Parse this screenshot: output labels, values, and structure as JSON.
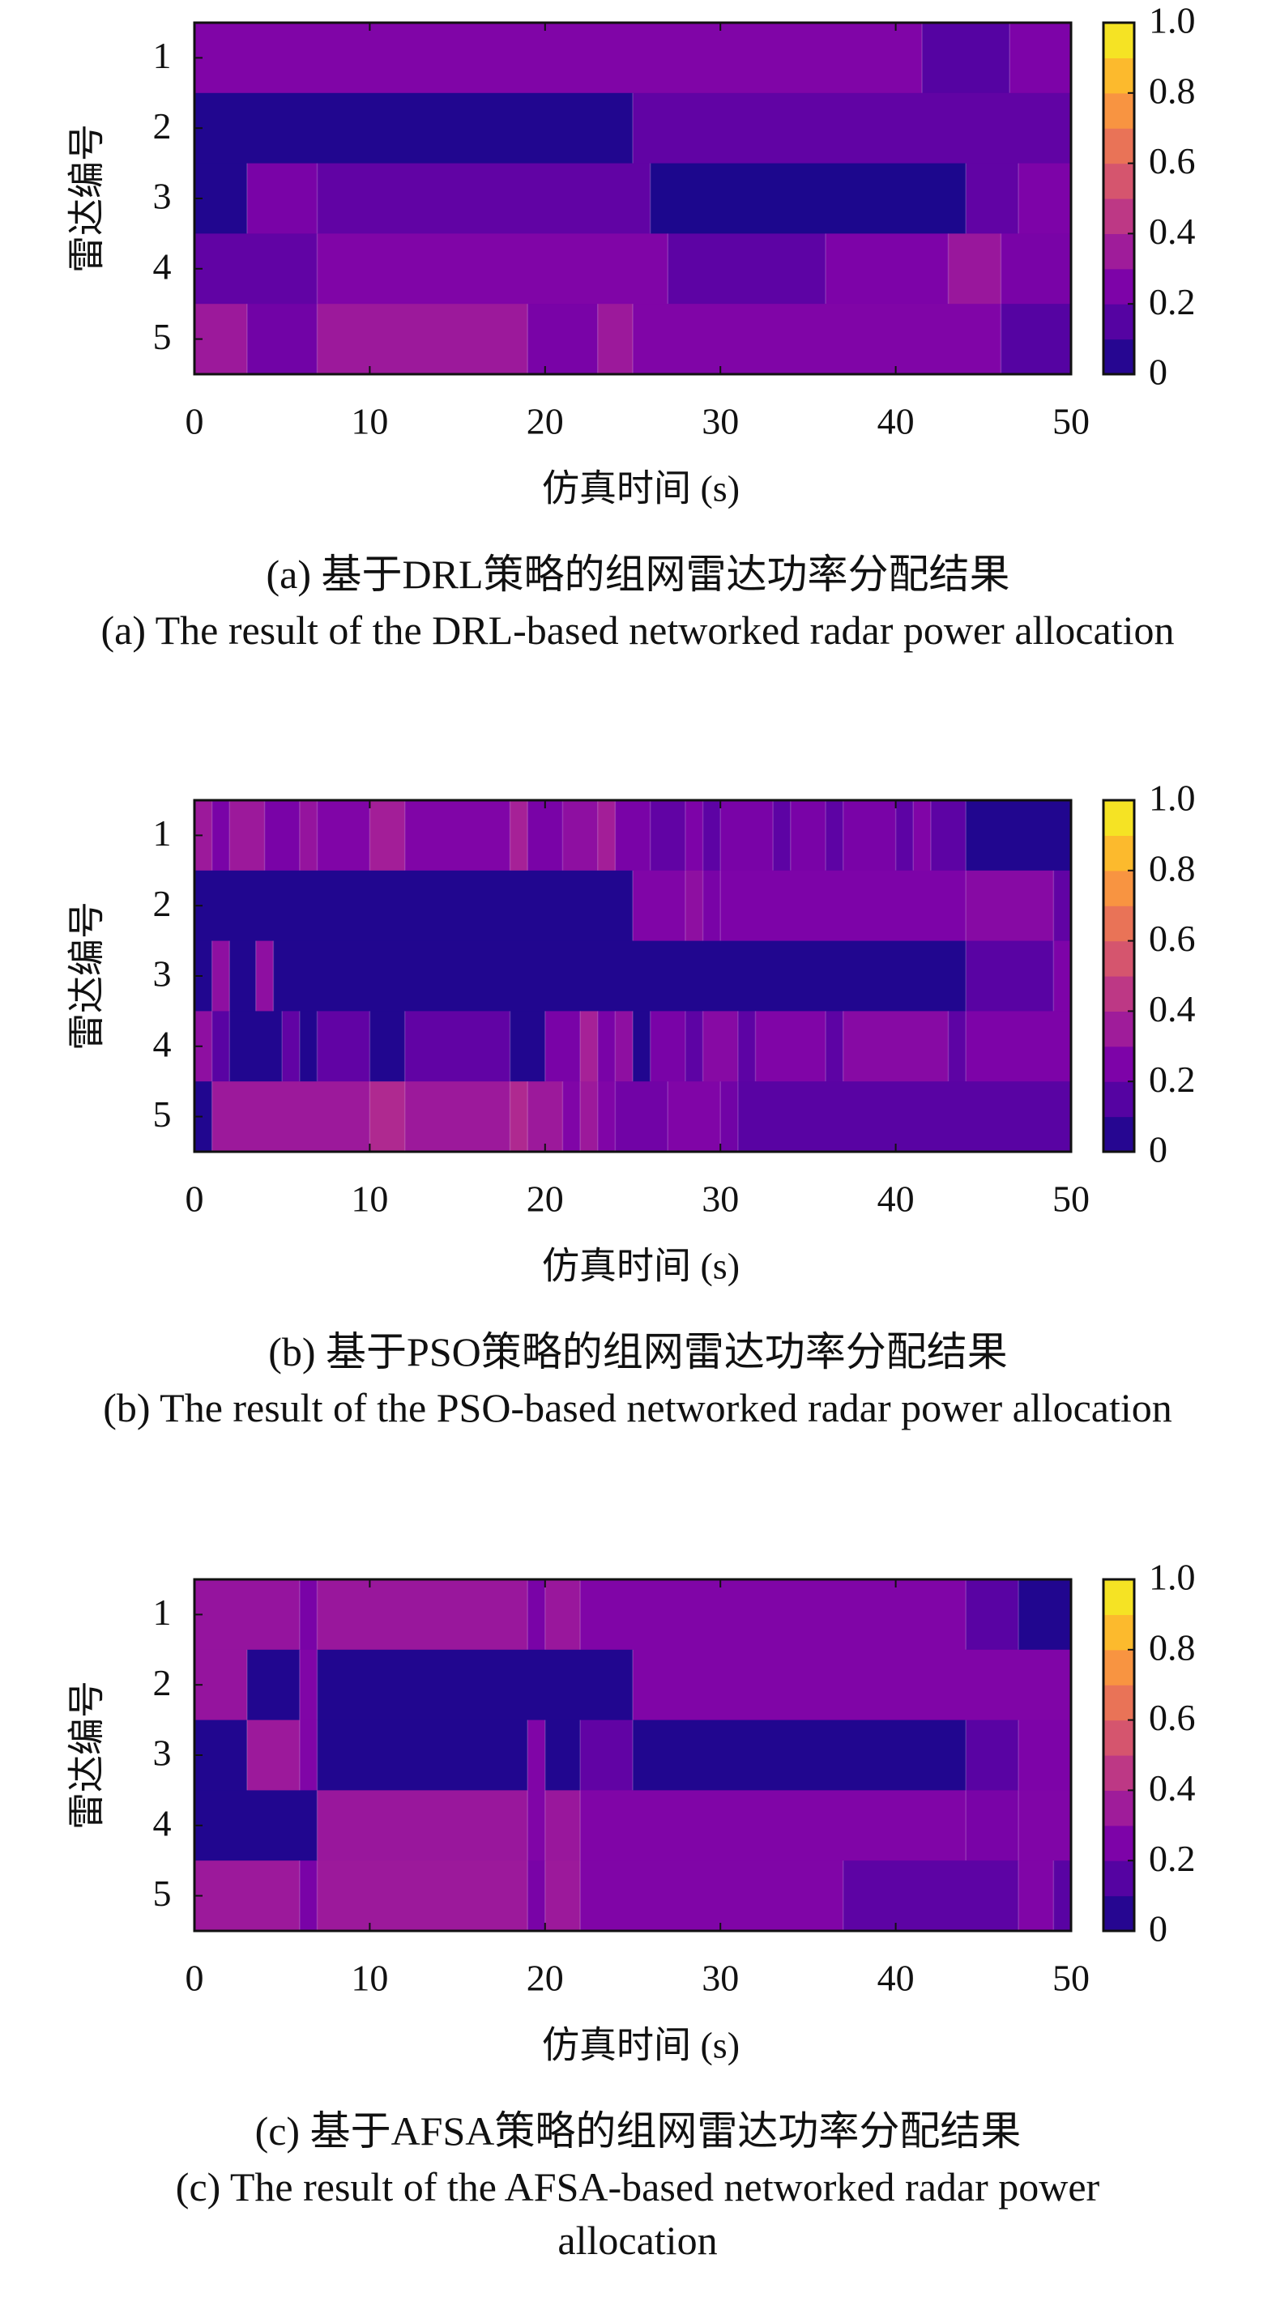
{
  "chart_data": [
    {
      "type": "heatmap",
      "xlabel": "仿真时间 (s)",
      "ylabel": "雷达编号",
      "xlim": [
        0,
        50
      ],
      "x_ticks": [
        "0",
        "10",
        "20",
        "30",
        "40",
        "50"
      ],
      "y_categories": [
        "1",
        "2",
        "3",
        "4",
        "5"
      ],
      "colorbar": {
        "min": 0,
        "max": 1,
        "ticks": [
          "0",
          "0.2",
          "0.4",
          "0.6",
          "0.8",
          "1.0"
        ],
        "colormap": "plasma",
        "levels": 10
      },
      "caption_cn": "(a) 基于DRL策略的组网雷达功率分配结果",
      "caption_en": "(a) The result of the DRL-based networked radar power allocation",
      "rows": [
        [
          [
            0,
            41.5,
            0.26
          ],
          [
            41.5,
            46.5,
            0.15
          ],
          [
            46.5,
            50,
            0.25
          ]
        ],
        [
          [
            0,
            25,
            0.04
          ],
          [
            25,
            50,
            0.18
          ]
        ],
        [
          [
            0,
            3,
            0.04
          ],
          [
            3,
            7,
            0.24
          ],
          [
            7,
            26,
            0.18
          ],
          [
            26,
            44,
            0.03
          ],
          [
            44,
            47,
            0.18
          ],
          [
            47,
            50,
            0.25
          ]
        ],
        [
          [
            0,
            7,
            0.18
          ],
          [
            7,
            27,
            0.26
          ],
          [
            27,
            36,
            0.17
          ],
          [
            36,
            43,
            0.25
          ],
          [
            43,
            46,
            0.33
          ],
          [
            46,
            50,
            0.24
          ]
        ],
        [
          [
            0,
            3,
            0.34
          ],
          [
            3,
            7,
            0.22
          ],
          [
            7,
            19,
            0.34
          ],
          [
            19,
            23,
            0.24
          ],
          [
            23,
            25,
            0.34
          ],
          [
            25,
            46,
            0.26
          ],
          [
            46,
            50,
            0.15
          ]
        ]
      ]
    },
    {
      "type": "heatmap",
      "xlabel": "仿真时间 (s)",
      "ylabel": "雷达编号",
      "xlim": [
        0,
        50
      ],
      "x_ticks": [
        "0",
        "10",
        "20",
        "30",
        "40",
        "50"
      ],
      "y_categories": [
        "1",
        "2",
        "3",
        "4",
        "5"
      ],
      "colorbar": {
        "min": 0,
        "max": 1,
        "ticks": [
          "0",
          "0.2",
          "0.4",
          "0.6",
          "0.8",
          "1.0"
        ],
        "colormap": "plasma",
        "levels": 10
      },
      "caption_cn": "(b) 基于PSO策略的组网雷达功率分配结果",
      "caption_en": "(b) The result of the PSO-based networked radar power allocation",
      "rows": [
        [
          [
            0,
            1,
            0.34
          ],
          [
            1,
            2,
            0.24
          ],
          [
            2,
            4,
            0.34
          ],
          [
            4,
            6,
            0.24
          ],
          [
            6,
            7,
            0.32
          ],
          [
            7,
            10,
            0.26
          ],
          [
            10,
            12,
            0.36
          ],
          [
            12,
            18,
            0.26
          ],
          [
            18,
            19,
            0.37
          ],
          [
            19,
            21,
            0.24
          ],
          [
            21,
            23,
            0.3
          ],
          [
            23,
            24,
            0.36
          ],
          [
            24,
            26,
            0.24
          ],
          [
            26,
            28,
            0.18
          ],
          [
            28,
            29,
            0.25
          ],
          [
            29,
            30,
            0.17
          ],
          [
            30,
            33,
            0.24
          ],
          [
            33,
            34,
            0.17
          ],
          [
            34,
            36,
            0.24
          ],
          [
            36,
            37,
            0.17
          ],
          [
            37,
            40,
            0.24
          ],
          [
            40,
            41,
            0.17
          ],
          [
            41,
            42,
            0.26
          ],
          [
            42,
            44,
            0.17
          ],
          [
            44,
            50,
            0.04
          ]
        ],
        [
          [
            0,
            25,
            0.04
          ],
          [
            25,
            28,
            0.26
          ],
          [
            28,
            29,
            0.3
          ],
          [
            29,
            30,
            0.24
          ],
          [
            30,
            44,
            0.25
          ],
          [
            44,
            49,
            0.28
          ],
          [
            49,
            50,
            0.18
          ]
        ],
        [
          [
            0,
            1,
            0.04
          ],
          [
            1,
            2,
            0.3
          ],
          [
            2,
            3.5,
            0.04
          ],
          [
            3.5,
            4.5,
            0.3
          ],
          [
            4.5,
            44,
            0.04
          ],
          [
            44,
            49,
            0.16
          ],
          [
            49,
            50,
            0.25
          ]
        ],
        [
          [
            0,
            1,
            0.3
          ],
          [
            1,
            2,
            0.16
          ],
          [
            2,
            5,
            0.04
          ],
          [
            5,
            6,
            0.18
          ],
          [
            6,
            7,
            0.04
          ],
          [
            7,
            10,
            0.18
          ],
          [
            10,
            12,
            0.04
          ],
          [
            12,
            18,
            0.18
          ],
          [
            18,
            20,
            0.04
          ],
          [
            20,
            22,
            0.24
          ],
          [
            22,
            23,
            0.37
          ],
          [
            23,
            24,
            0.24
          ],
          [
            24,
            25,
            0.3
          ],
          [
            25,
            26,
            0.04
          ],
          [
            26,
            28,
            0.24
          ],
          [
            28,
            29,
            0.17
          ],
          [
            29,
            31,
            0.28
          ],
          [
            31,
            32,
            0.17
          ],
          [
            32,
            36,
            0.26
          ],
          [
            36,
            37,
            0.17
          ],
          [
            37,
            43,
            0.28
          ],
          [
            43,
            44,
            0.17
          ],
          [
            44,
            50,
            0.25
          ]
        ],
        [
          [
            0,
            1,
            0.04
          ],
          [
            1,
            10,
            0.34
          ],
          [
            10,
            12,
            0.4
          ],
          [
            12,
            18,
            0.34
          ],
          [
            18,
            19,
            0.4
          ],
          [
            19,
            21,
            0.34
          ],
          [
            21,
            22,
            0.26
          ],
          [
            22,
            23,
            0.34
          ],
          [
            23,
            24,
            0.26
          ],
          [
            24,
            27,
            0.22
          ],
          [
            27,
            30,
            0.26
          ],
          [
            30,
            31,
            0.22
          ],
          [
            31,
            50,
            0.16
          ]
        ]
      ]
    },
    {
      "type": "heatmap",
      "xlabel": "仿真时间 (s)",
      "ylabel": "雷达编号",
      "xlim": [
        0,
        50
      ],
      "x_ticks": [
        "0",
        "10",
        "20",
        "30",
        "40",
        "50"
      ],
      "y_categories": [
        "1",
        "2",
        "3",
        "4",
        "5"
      ],
      "colorbar": {
        "min": 0,
        "max": 1,
        "ticks": [
          "0",
          "0.2",
          "0.4",
          "0.6",
          "0.8",
          "1.0"
        ],
        "colormap": "plasma",
        "levels": 10
      },
      "caption_cn": "(c) 基于AFSA策略的组网雷达功率分配结果",
      "caption_en": "(c) The result of the AFSA-based networked radar power allocation",
      "rows": [
        [
          [
            0,
            6,
            0.32
          ],
          [
            6,
            7,
            0.24
          ],
          [
            7,
            19,
            0.33
          ],
          [
            19,
            20,
            0.24
          ],
          [
            20,
            22,
            0.33
          ],
          [
            22,
            44,
            0.26
          ],
          [
            44,
            47,
            0.16
          ],
          [
            47,
            50,
            0.04
          ]
        ],
        [
          [
            0,
            3,
            0.32
          ],
          [
            3,
            6,
            0.04
          ],
          [
            6,
            7,
            0.26
          ],
          [
            7,
            25,
            0.04
          ],
          [
            25,
            50,
            0.26
          ]
        ],
        [
          [
            0,
            3,
            0.04
          ],
          [
            3,
            6,
            0.34
          ],
          [
            6,
            7,
            0.26
          ],
          [
            7,
            19,
            0.04
          ],
          [
            19,
            20,
            0.26
          ],
          [
            20,
            22,
            0.04
          ],
          [
            22,
            25,
            0.18
          ],
          [
            25,
            44,
            0.04
          ],
          [
            44,
            47,
            0.16
          ],
          [
            47,
            50,
            0.25
          ]
        ],
        [
          [
            0,
            7,
            0.04
          ],
          [
            7,
            19,
            0.33
          ],
          [
            19,
            20,
            0.26
          ],
          [
            20,
            22,
            0.33
          ],
          [
            22,
            44,
            0.26
          ],
          [
            44,
            47,
            0.24
          ],
          [
            47,
            50,
            0.26
          ]
        ],
        [
          [
            0,
            6,
            0.34
          ],
          [
            6,
            7,
            0.24
          ],
          [
            7,
            19,
            0.34
          ],
          [
            19,
            20,
            0.24
          ],
          [
            20,
            22,
            0.34
          ],
          [
            22,
            37,
            0.26
          ],
          [
            37,
            47,
            0.17
          ],
          [
            47,
            49,
            0.26
          ],
          [
            49,
            50,
            0.16
          ]
        ]
      ]
    }
  ]
}
